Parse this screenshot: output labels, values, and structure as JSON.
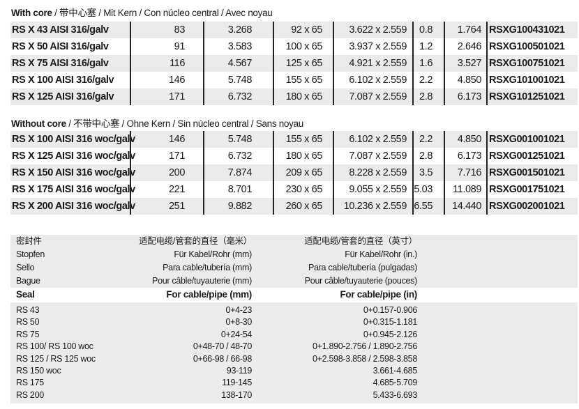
{
  "with_core": {
    "title_bold": "With core",
    "title_rest": " / 带中心塞 / Mit Kern / Con núcleo central / Avec noyau",
    "rows": [
      [
        "RS X 43 AISI 316/galv",
        "83",
        "3.268",
        "92 x 65",
        "3.622 x 2.559",
        "0.8",
        "1.764",
        "RSXG100431021"
      ],
      [
        "RS X 50 AISI 316/galv",
        "91",
        "3.583",
        "100 x 65",
        "3.937 x 2.559",
        "1.2",
        "2.646",
        "RSXG100501021"
      ],
      [
        "RS X 75 AISI 316/galv",
        "116",
        "4.567",
        "125 x 65",
        "4.921 x 2.559",
        "1.6",
        "3.527",
        "RSXG100751021"
      ],
      [
        "RS X 100 AISI 316/galv",
        "146",
        "5.748",
        "155 x 65",
        "6.102 x 2.559",
        "2.2",
        "4.850",
        "RSXG101001021"
      ],
      [
        "RS X 125 AISI 316/galv",
        "171",
        "6.732",
        "180 x 65",
        "7.087 x 2.559",
        "2.8",
        "6.173",
        "RSXG101251021"
      ]
    ]
  },
  "without_core": {
    "title_bold": "Without core",
    "title_rest": " / 不带中心塞 / Ohne Kern / Sin núcleo central / Sans noyau",
    "rows": [
      [
        "RS X 100 AISI 316 woc/galv",
        "146",
        "5.748",
        "155 x 65",
        "6.102 x 2.559",
        "2.2",
        "4.850",
        "RSXG001001021"
      ],
      [
        "RS X 125 AISI 316 woc/galv",
        "171",
        "6.732",
        "180 x 65",
        "7.087 x 2.559",
        "2.8",
        "6.173",
        "RSXG001251021"
      ],
      [
        "RS X 150 AISI 316 woc/galv",
        "200",
        "7.874",
        "209 x 65",
        "8.228 x 2.559",
        "3.5",
        "7.716",
        "RSXG001501021"
      ],
      [
        "RS X 175 AISI 316 woc/galv",
        "221",
        "8.701",
        "230 x 65",
        "9.055 x 2.559",
        "5.03",
        "11.089",
        "RSXG001751021"
      ],
      [
        "RS X 200 AISI 316 woc/galv",
        "251",
        "9.882",
        "260 x 65",
        "10.236 x 2.559",
        "6.55",
        "14.440",
        "RSXG002001021"
      ]
    ]
  },
  "seal_table": {
    "header_lines": [
      [
        "密封件",
        "适配电缆/管套的直径（毫米）",
        "适配电缆/管套的直径（英寸）"
      ],
      [
        "Stopfen",
        "Für Kabel/Rohr (mm)",
        "Für Kabel/Rohr (in.)"
      ],
      [
        "Sello",
        "Para cable/tubería (mm)",
        "Para cable/tubería (pulgadas)"
      ],
      [
        "Bague",
        "Pour câble/tuyauterie (mm)",
        "Pour câble/tuyauterie (pouces)"
      ]
    ],
    "main_header": [
      "Seal",
      "For cable/pipe (mm)",
      "For cable/pipe (in)"
    ],
    "rows": [
      [
        "RS 43",
        "0+4-23",
        "0+0.157-0.906"
      ],
      [
        "RS 50",
        "0+8-30",
        "0+0.315-1.181"
      ],
      [
        "RS 75",
        "0+24-54",
        "0+0.945-2.126"
      ],
      [
        "RS 100/ RS 100 woc",
        "0+48-70 / 48-70",
        "0+1.890-2.756 / 1.890-2.756"
      ],
      [
        "RS 125 / RS 125 woc",
        "0+66-98 / 66-98",
        "0+2.598-3.858 / 2.598-3.858"
      ],
      [
        "RS 150 woc",
        "93-119",
        "3.661-4.685"
      ],
      [
        "RS 175",
        "119-145",
        "4.685-5.709"
      ],
      [
        "RS 200",
        "138-170",
        "5.433-6.693"
      ]
    ]
  },
  "colors": {
    "row_shade": "#ebebeb",
    "text": "#1a1a1a",
    "rule": "#222222"
  }
}
